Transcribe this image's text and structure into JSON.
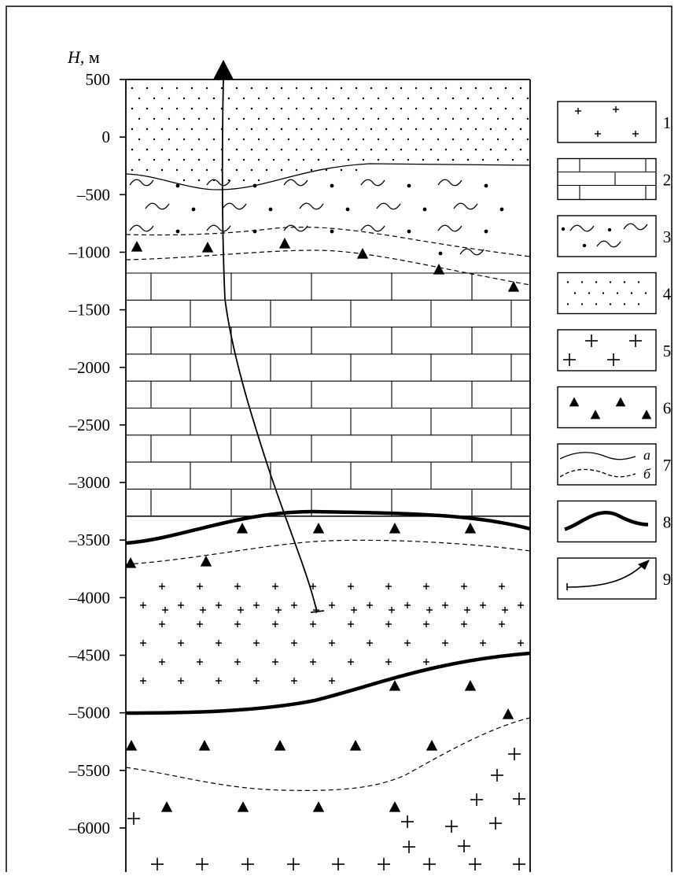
{
  "figure": {
    "axis_title_italic": "H",
    "axis_title_unit": ", м",
    "y_ticks": [
      "500",
      "0",
      "–500",
      "–1000",
      "–1500",
      "–2000",
      "–2500",
      "–3000",
      "–3500",
      "–4000",
      "–4500",
      "–5000",
      "–5500",
      "–6000"
    ],
    "legend": [
      {
        "num": "1",
        "pattern": "sparse-crosses"
      },
      {
        "num": "2",
        "pattern": "limestone-bricks"
      },
      {
        "num": "3",
        "pattern": "dots-and-waves"
      },
      {
        "num": "4",
        "pattern": "fine-dots"
      },
      {
        "num": "5",
        "pattern": "large-crosses"
      },
      {
        "num": "6",
        "pattern": "triangles"
      },
      {
        "num": "7",
        "pattern": "boundary-lines",
        "sub_a": "а",
        "sub_b": "б"
      },
      {
        "num": "8",
        "pattern": "thick-boundary"
      },
      {
        "num": "9",
        "pattern": "well-trajectory-arrow"
      }
    ]
  }
}
